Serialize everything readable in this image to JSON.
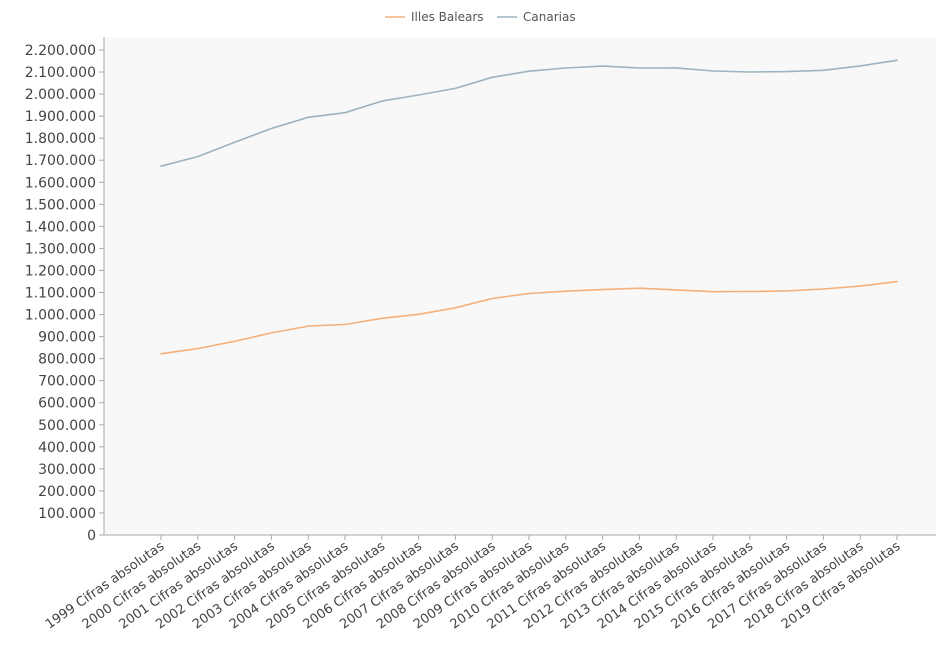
{
  "chart_data": {
    "type": "line",
    "title": "",
    "xlabel": "",
    "ylabel": "",
    "ylim": [
      0,
      2200000
    ],
    "y_ticks": [
      0,
      100000,
      200000,
      300000,
      400000,
      500000,
      600000,
      700000,
      800000,
      900000,
      1000000,
      1100000,
      1200000,
      1300000,
      1400000,
      1500000,
      1600000,
      1700000,
      1800000,
      1900000,
      2000000,
      2100000,
      2200000
    ],
    "y_tick_labels": [
      "0",
      "100.000",
      "200.000",
      "300.000",
      "400.000",
      "500.000",
      "600.000",
      "700.000",
      "800.000",
      "900.000",
      "1.000.000",
      "1.100.000",
      "1.200.000",
      "1.300.000",
      "1.400.000",
      "1.500.000",
      "1.600.000",
      "1.700.000",
      "1.800.000",
      "1.900.000",
      "2.000.000",
      "2.100.000",
      "2.200.000"
    ],
    "grid": false,
    "legend_position": "top-center",
    "categories": [
      "1999 Cifras absolutas",
      "2000 Cifras absolutas",
      "2001 Cifras absolutas",
      "2002 Cifras absolutas",
      "2003 Cifras absolutas",
      "2004 Cifras absolutas",
      "2005 Cifras absolutas",
      "2006 Cifras absolutas",
      "2007 Cifras absolutas",
      "2008 Cifras absolutas",
      "2009 Cifras absolutas",
      "2010 Cifras absolutas",
      "2011 Cifras absolutas",
      "2012 Cifras absolutas",
      "2013 Cifras absolutas",
      "2014 Cifras absolutas",
      "2015 Cifras absolutas",
      "2016 Cifras absolutas",
      "2017 Cifras absolutas",
      "2018 Cifras absolutas",
      "2019 Cifras absolutas"
    ],
    "series": [
      {
        "name": "Illes Balears",
        "color": "#f5b07a",
        "values": [
          821820,
          845630,
          878627,
          916968,
          947361,
          955045,
          983131,
          1001062,
          1030650,
          1072844,
          1095426,
          1106049,
          1113114,
          1119439,
          1111674,
          1103442,
          1104479,
          1107220,
          1115999,
          1128908,
          1149460
        ]
      },
      {
        "name": "Canarias",
        "color": "#9db3bf",
        "values": [
          1672689,
          1716276,
          1781366,
          1843755,
          1894868,
          1915540,
          1968280,
          1995833,
          2025951,
          2075968,
          2103992,
          2118519,
          2126769,
          2118344,
          2118679,
          2104815,
          2100306,
          2101924,
          2108121,
          2127685,
          2153389
        ]
      }
    ]
  }
}
